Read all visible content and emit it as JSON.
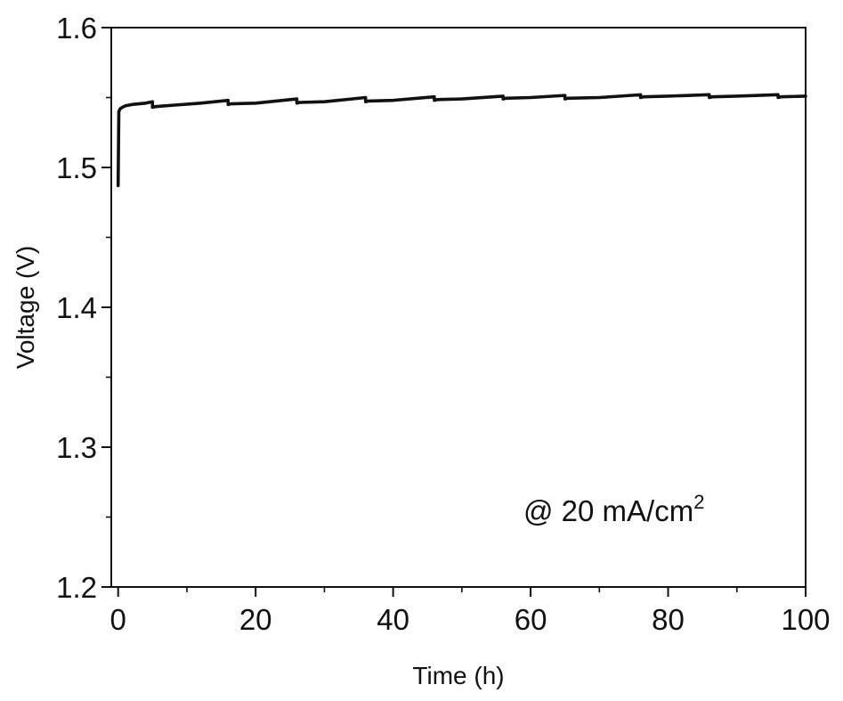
{
  "chart_data": {
    "type": "line",
    "title": "",
    "xlabel": "Time (h)",
    "ylabel": "Voltage (V)",
    "xlim": [
      -1,
      100
    ],
    "ylim": [
      1.2,
      1.6
    ],
    "x_ticks": [
      0,
      20,
      40,
      60,
      80,
      100
    ],
    "x_tick_labels": [
      "0",
      "20",
      "40",
      "60",
      "80",
      "100"
    ],
    "y_ticks": [
      1.2,
      1.3,
      1.4,
      1.5,
      1.6
    ],
    "y_tick_labels": [
      "1.2",
      "1.3",
      "1.4",
      "1.5",
      "1.6"
    ],
    "grid": false,
    "legend": "none",
    "annotation": {
      "text": "@ 20 mA/cm",
      "superscript": "2"
    },
    "series_color": "#111111",
    "series": [
      {
        "x": [
          0.0,
          0.05,
          0.1,
          0.3,
          0.6,
          1.0,
          2.0,
          3.0,
          4.0,
          4.99,
          5.0,
          5.4,
          8.0,
          12.0,
          15.99,
          16.0,
          16.4,
          20.0,
          25.99,
          26.0,
          26.4,
          30.0,
          35.99,
          36.0,
          36.4,
          40.0,
          45.99,
          46.0,
          46.4,
          50.0,
          55.99,
          56.0,
          56.4,
          60.0,
          64.99,
          65.0,
          65.4,
          70.0,
          75.99,
          76.0,
          76.4,
          80.0,
          85.99,
          86.0,
          86.4,
          90.0,
          95.99,
          96.0,
          96.4,
          100.0
        ],
        "y": [
          1.487,
          1.515,
          1.54,
          1.542,
          1.543,
          1.544,
          1.545,
          1.5455,
          1.546,
          1.547,
          1.543,
          1.5435,
          1.5445,
          1.546,
          1.548,
          1.545,
          1.5455,
          1.546,
          1.549,
          1.546,
          1.5465,
          1.547,
          1.55,
          1.547,
          1.5475,
          1.548,
          1.5505,
          1.548,
          1.5485,
          1.549,
          1.551,
          1.549,
          1.5495,
          1.55,
          1.5515,
          1.549,
          1.5495,
          1.55,
          1.552,
          1.55,
          1.5505,
          1.551,
          1.552,
          1.55,
          1.5505,
          1.551,
          1.552,
          1.55,
          1.5505,
          1.551
        ]
      }
    ]
  }
}
